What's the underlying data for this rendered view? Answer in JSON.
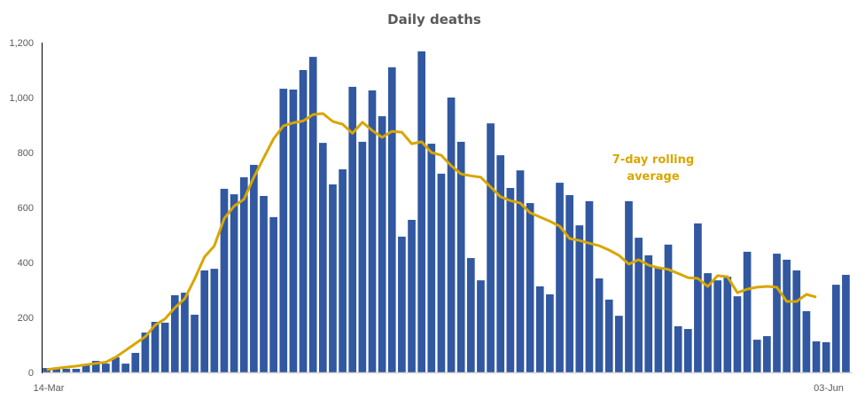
{
  "chart_data": {
    "type": "bar",
    "title": "Daily deaths",
    "xlabel": "",
    "ylabel": "",
    "x_start": "14-Mar",
    "x_end": "03-Jun",
    "x_tick_labels": [
      "14-Mar",
      "03-Jun"
    ],
    "y_tick_labels": [
      "0",
      "200",
      "400",
      "600",
      "800",
      "1,000",
      "1,200"
    ],
    "ylim": [
      0,
      1200
    ],
    "grid": false,
    "legend": "none",
    "annotation": [
      "7-day rolling",
      "average"
    ],
    "colors": {
      "bars": "#3158A0",
      "line": "#D9A600"
    },
    "series": [
      {
        "type": "bar",
        "values": [
          16,
          16,
          13,
          13,
          29,
          42,
          32,
          55,
          32,
          71,
          145,
          184,
          181,
          281,
          290,
          210,
          371,
          377,
          668,
          648,
          710,
          755,
          642,
          565,
          1032,
          1029,
          1100,
          1148,
          835,
          684,
          739,
          1039,
          839,
          1026,
          932,
          1110,
          494,
          555,
          1168,
          832,
          723,
          1000,
          839,
          416,
          335,
          906,
          790,
          671,
          735,
          616,
          313,
          284,
          690,
          645,
          535,
          623,
          342,
          265,
          206,
          623,
          490,
          426,
          380,
          465,
          168,
          158,
          542,
          361,
          335,
          348,
          277,
          439,
          119,
          132,
          432,
          410,
          371,
          223,
          113,
          110,
          319,
          355
        ]
      },
      {
        "type": "line",
        "name": "7-day rolling average",
        "values": [
          10,
          15,
          19,
          23,
          28,
          33,
          37,
          55,
          80,
          105,
          130,
          172,
          195,
          235,
          268,
          340,
          420,
          460,
          560,
          605,
          630,
          710,
          780,
          850,
          897,
          908,
          915,
          938,
          942,
          913,
          903,
          870,
          910,
          880,
          855,
          877,
          874,
          832,
          839,
          800,
          790,
          752,
          722,
          715,
          710,
          675,
          639,
          625,
          616,
          581,
          565,
          550,
          532,
          487,
          480,
          470,
          461,
          445,
          426,
          394,
          410,
          390,
          381,
          375,
          360,
          345,
          342,
          313,
          352,
          348,
          290,
          303,
          310,
          313,
          310,
          258,
          258,
          284,
          274
        ]
      }
    ]
  }
}
